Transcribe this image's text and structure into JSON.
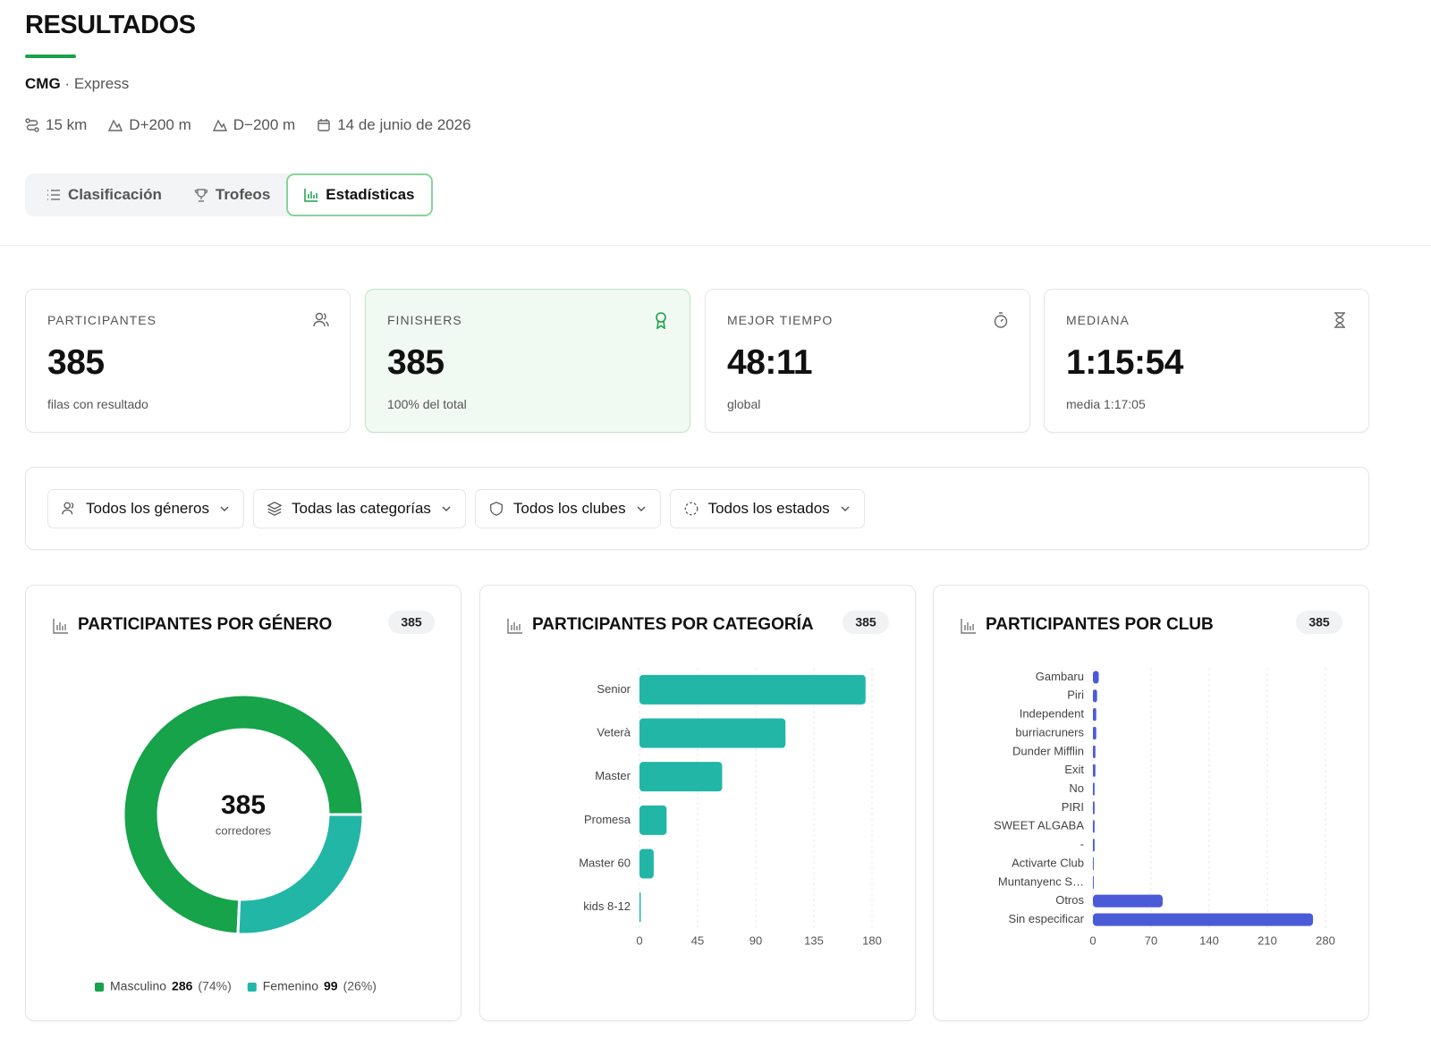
{
  "header": {
    "title": "RESULTADOS",
    "event": "CMG",
    "separator": "·",
    "race": "Express",
    "meta": [
      "15 km",
      "D+200 m",
      "D−200 m",
      "14 de junio de 2026"
    ]
  },
  "tabs": [
    "Clasificación",
    "Trofeos",
    "Estadísticas"
  ],
  "stats": [
    {
      "label": "PARTICIPANTES",
      "value": 385,
      "note": "filas con resultado"
    },
    {
      "label": "FINISHERS",
      "value": 385,
      "note": "100% del total"
    },
    {
      "label": "MEJOR TIEMPO",
      "value": "48:11",
      "note": "global"
    },
    {
      "label": "MEDIANA",
      "value": "1:15:54",
      "note": "media 1:17:05"
    }
  ],
  "filters": [
    "Todos los géneros",
    "Todas las categorías",
    "Todos los clubes",
    "Todos los estados"
  ],
  "chart_data": [
    {
      "type": "donut",
      "title": "PARTICIPANTES POR GÉNERO",
      "total": 385,
      "center_label": "corredores",
      "categories": [
        "Masculino",
        "Femenino"
      ],
      "values": [
        286,
        99
      ],
      "percent_labels": [
        "(74%)",
        "(26%)"
      ],
      "colors": [
        "#16a34a",
        "#21b6a6"
      ]
    },
    {
      "type": "barh",
      "title": "PARTICIPANTES POR CATEGORÍA",
      "total": 385,
      "categories": [
        "Senior",
        "Veterà",
        "Master",
        "Promesa",
        "Master 60",
        "kids 8-12"
      ],
      "values": [
        175,
        113,
        64,
        21,
        11,
        1
      ],
      "color": "#21b6a6",
      "xlim": [
        0,
        180
      ],
      "xticks": [
        0,
        45,
        90,
        135,
        180
      ],
      "grid": true
    },
    {
      "type": "barh",
      "title": "PARTICIPANTES POR CLUB",
      "total": 385,
      "categories": [
        "Gambaru",
        "Piri",
        "Independent",
        "burriacruners",
        "Dunder Mifflin",
        "Exit",
        "No",
        "PIRI",
        "SWEET ALGABA",
        "-",
        "Activarte Club",
        "Muntanyenc S…",
        "Otros",
        "Sin especificar"
      ],
      "values": [
        7,
        5,
        4,
        4,
        3,
        3,
        2,
        2,
        2,
        2,
        1,
        1,
        84,
        265
      ],
      "color": "#4b5bd8",
      "xlim": [
        0,
        280
      ],
      "xticks": [
        0,
        70,
        140,
        210,
        280
      ],
      "grid": true
    }
  ]
}
